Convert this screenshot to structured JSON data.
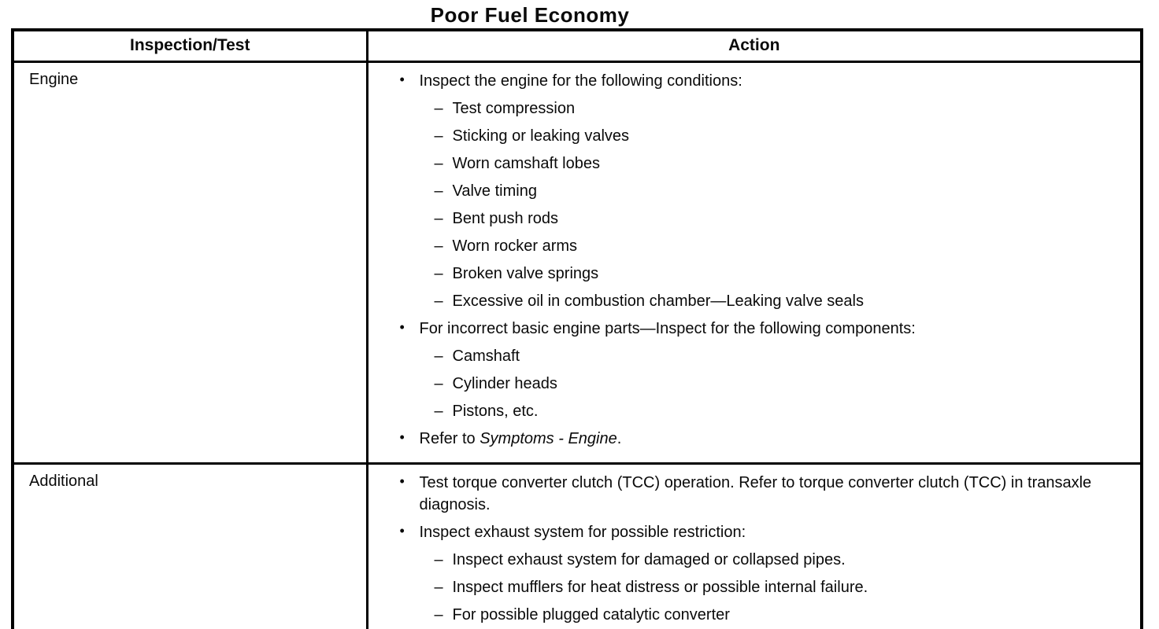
{
  "title": "Poor Fuel Economy",
  "markers": {
    "bullet": "•",
    "dash": "–"
  },
  "table": {
    "headers": {
      "inspection": "Inspection/Test",
      "action": "Action"
    },
    "rows": [
      {
        "inspection": "Engine",
        "actions": [
          {
            "type": "bullet",
            "text": "Inspect the engine for the following conditions:"
          },
          {
            "type": "dash",
            "text": "Test compression"
          },
          {
            "type": "dash",
            "text": "Sticking or leaking valves"
          },
          {
            "type": "dash",
            "text": "Worn camshaft lobes"
          },
          {
            "type": "dash",
            "text": "Valve timing"
          },
          {
            "type": "dash",
            "text": "Bent push rods"
          },
          {
            "type": "dash",
            "text": "Worn rocker arms"
          },
          {
            "type": "dash",
            "text": "Broken valve springs"
          },
          {
            "type": "dash",
            "text": "Excessive oil in combustion chamber—Leaking valve seals"
          },
          {
            "type": "bullet",
            "text": "For incorrect basic engine parts—Inspect for the following components:"
          },
          {
            "type": "dash",
            "text": "Camshaft"
          },
          {
            "type": "dash",
            "text": "Cylinder heads"
          },
          {
            "type": "dash",
            "text": "Pistons, etc."
          },
          {
            "type": "bullet",
            "segments": [
              {
                "text": "Refer to ",
                "italic": false
              },
              {
                "text": "Symptoms - Engine",
                "italic": true
              },
              {
                "text": ".",
                "italic": false
              }
            ]
          }
        ]
      },
      {
        "inspection": "Additional",
        "actions": [
          {
            "type": "bullet",
            "text": "Test torque converter clutch (TCC) operation. Refer to torque converter clutch (TCC) in transaxle diagnosis."
          },
          {
            "type": "bullet",
            "text": "Inspect exhaust system for possible restriction:"
          },
          {
            "type": "dash",
            "text": "Inspect exhaust system for damaged or collapsed pipes."
          },
          {
            "type": "dash",
            "text": "Inspect mufflers for heat distress or possible internal failure."
          },
          {
            "type": "dash",
            "text": "For possible plugged catalytic converter"
          }
        ]
      }
    ]
  }
}
